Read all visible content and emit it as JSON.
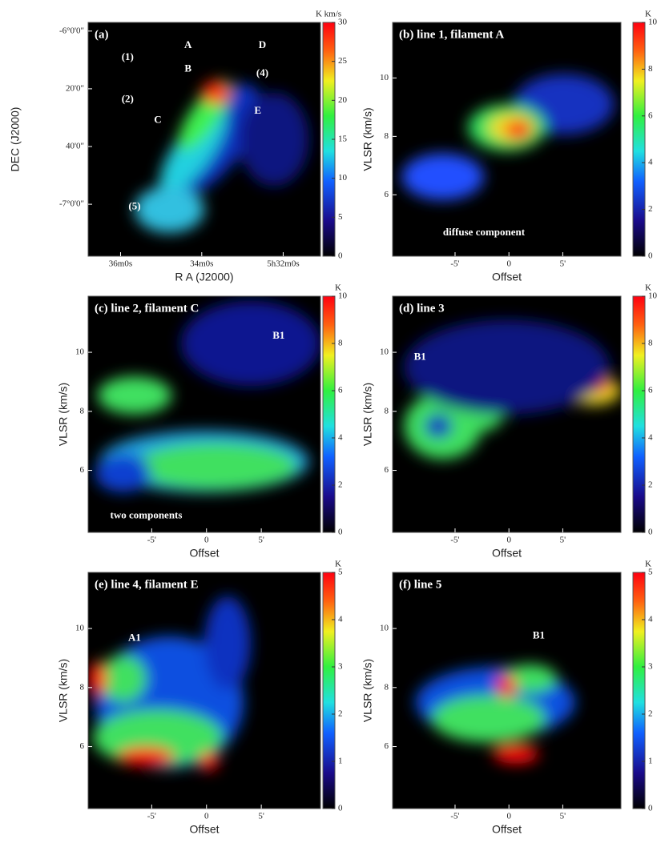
{
  "chart_data": [
    {
      "type": "heatmap",
      "title": "(a)",
      "xlabel": "R A (J2000)",
      "ylabel": "DEC (J2000)",
      "xlim": [
        5.6133,
        5.518
      ],
      "xticks": [
        {
          "value": 5.6,
          "label": "36m0s"
        },
        {
          "value": 5.5667,
          "label": "34m0s"
        },
        {
          "value": 5.5333,
          "label": "5h32m0s"
        }
      ],
      "ylim": [
        -7.3,
        -5.95
      ],
      "yticks": [
        {
          "value": -6,
          "label": "-6°0'0\""
        },
        {
          "value": -6.3333,
          "label": "20'0\""
        },
        {
          "value": -6.6667,
          "label": "40'0\""
        },
        {
          "value": -7,
          "label": "-7°0'0\""
        }
      ],
      "colorbar_label": "K km/s",
      "clim": [
        0,
        30
      ],
      "cticks": [
        0,
        5,
        10,
        15,
        20,
        25,
        30
      ],
      "annotations": [
        "A",
        "B",
        "C",
        "D",
        "E",
        "(1)",
        "(2)",
        "(4)",
        "(5)"
      ]
    },
    {
      "type": "heatmap",
      "title": "(b) line 1,   filament A",
      "xlabel": "Offset",
      "ylabel": "VLSR (km/s)",
      "xlim": [
        -10.8,
        10.4
      ],
      "xticks": [
        {
          "value": -5,
          "label": "-5'"
        },
        0,
        {
          "value": 5,
          "label": "5'"
        }
      ],
      "ylim": [
        3.9,
        11.9
      ],
      "yticks": [
        6,
        8,
        10
      ],
      "colorbar_label": "K",
      "clim": [
        0,
        10
      ],
      "cticks": [
        0,
        2,
        4,
        6,
        8,
        10
      ],
      "annotations": [
        "diffuse component"
      ]
    },
    {
      "type": "heatmap",
      "title": "(c) line 2,   filament C",
      "xlabel": "Offset",
      "ylabel": "VLSR (km/s)",
      "xlim": [
        -10.8,
        10.4
      ],
      "xticks": [
        {
          "value": -5,
          "label": "-5'"
        },
        0,
        {
          "value": 5,
          "label": "5'"
        }
      ],
      "ylim": [
        3.9,
        11.9
      ],
      "yticks": [
        6,
        8,
        10
      ],
      "colorbar_label": "K",
      "clim": [
        0,
        10
      ],
      "cticks": [
        0,
        2,
        4,
        6,
        8,
        10
      ],
      "annotations": [
        "B1",
        "two components"
      ]
    },
    {
      "type": "heatmap",
      "title": "(d) line 3",
      "xlabel": "Offset",
      "ylabel": "VLSR (km/s)",
      "xlim": [
        -10.8,
        10.4
      ],
      "xticks": [
        {
          "value": -5,
          "label": "-5'"
        },
        0,
        {
          "value": 5,
          "label": "5'"
        }
      ],
      "ylim": [
        3.9,
        11.9
      ],
      "yticks": [
        6,
        8,
        10
      ],
      "colorbar_label": "K",
      "clim": [
        0,
        10
      ],
      "cticks": [
        0,
        2,
        4,
        6,
        8,
        10
      ],
      "annotations": [
        "B1"
      ]
    },
    {
      "type": "heatmap",
      "title": "(e) line 4,   filament E",
      "xlabel": "Offset",
      "ylabel": "VLSR (km/s)",
      "xlim": [
        -10.8,
        10.4
      ],
      "xticks": [
        {
          "value": -5,
          "label": "-5'"
        },
        0,
        {
          "value": 5,
          "label": "5'"
        }
      ],
      "ylim": [
        3.9,
        11.9
      ],
      "yticks": [
        6,
        8,
        10
      ],
      "colorbar_label": "K",
      "clim": [
        0,
        5
      ],
      "cticks": [
        0,
        1,
        2,
        3,
        4,
        5
      ],
      "annotations": [
        "A1"
      ]
    },
    {
      "type": "heatmap",
      "title": "(f) line 5",
      "xlabel": "Offset",
      "ylabel": "VLSR (km/s)",
      "xlim": [
        -10.8,
        10.4
      ],
      "xticks": [
        {
          "value": -5,
          "label": "-5'"
        },
        0,
        {
          "value": 5,
          "label": "5'"
        }
      ],
      "ylim": [
        3.9,
        11.9
      ],
      "yticks": [
        6,
        8,
        10
      ],
      "colorbar_label": "K",
      "clim": [
        0,
        5
      ],
      "cticks": [
        0,
        1,
        2,
        3,
        4,
        5
      ],
      "annotations": [
        "B1"
      ]
    }
  ]
}
